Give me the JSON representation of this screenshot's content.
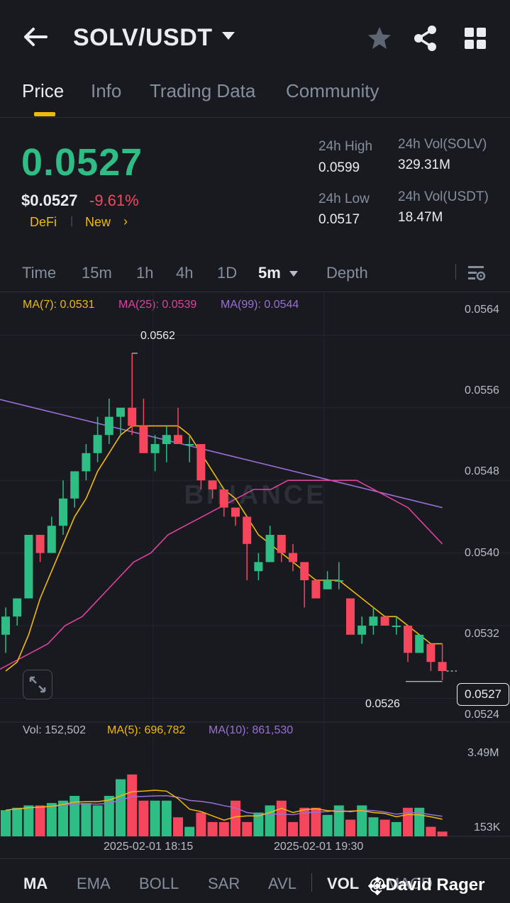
{
  "header": {
    "pair": "SOLV/USDT"
  },
  "tabs": [
    {
      "label": "Price",
      "active": true
    },
    {
      "label": "Info"
    },
    {
      "label": "Trading Data"
    },
    {
      "label": "Community"
    }
  ],
  "price": {
    "last": "0.0527",
    "usd": "$0.0527",
    "change": "-9.61%",
    "tags": [
      "DeFi",
      "|",
      "New"
    ],
    "tag_arrow": "›"
  },
  "stats": {
    "high_label": "24h High",
    "high_value": "0.0599",
    "low_label": "24h Low",
    "low_value": "0.0517",
    "vol_base_label": "24h Vol(SOLV)",
    "vol_base_value": "329.31M",
    "vol_quote_label": "24h Vol(USDT)",
    "vol_quote_value": "18.47M"
  },
  "timeframes": {
    "time": "Time",
    "m15": "15m",
    "h1": "1h",
    "h4": "4h",
    "d1": "1D",
    "m5": "5m",
    "depth": "Depth"
  },
  "ma_legend": {
    "ma7": "MA(7): 0.0531",
    "ma25": "MA(25): 0.0539",
    "ma99": "MA(99): 0.0544"
  },
  "price_axis": [
    "0.0564",
    "0.0556",
    "0.0548",
    "0.0540",
    "0.0532",
    "0.0524"
  ],
  "current_price_tag": "0.0527",
  "high_marker": "0.0562",
  "low_marker": "0.0526",
  "volume": {
    "vol_label": "Vol: 152,502",
    "ma5_label": "MA(5): 696,782",
    "ma10_label": "MA(10): 861,530",
    "axis_top": "3.49M",
    "axis_bottom": "153K"
  },
  "time_axis": [
    "2025-02-01 18:15",
    "2025-02-01 19:30"
  ],
  "indicators": {
    "ma": "MA",
    "ema": "EMA",
    "boll": "BOLL",
    "sar": "SAR",
    "avl": "AVL",
    "vol": "VOL",
    "macd": "MACD"
  },
  "credit": "@David Rager",
  "watermark": "BINANCE",
  "colors": {
    "up": "#2ebd85",
    "down": "#f6465d",
    "accent": "#f0b90b",
    "ma7": "#f0b90b",
    "ma25": "#e040a0",
    "ma99": "#9b6fd6"
  },
  "chart_data": {
    "type": "candlestick",
    "interval": "5m",
    "y_range": [
      0.0522,
      0.0567
    ],
    "candles": [
      [
        0.0531,
        0.0534,
        0.0529,
        0.0533
      ],
      [
        0.0533,
        0.0535,
        0.0532,
        0.0535
      ],
      [
        0.0535,
        0.0542,
        0.0535,
        0.0542
      ],
      [
        0.0542,
        0.0542,
        0.0539,
        0.054
      ],
      [
        0.054,
        0.0544,
        0.054,
        0.0543
      ],
      [
        0.0543,
        0.0548,
        0.0542,
        0.0546
      ],
      [
        0.0546,
        0.0549,
        0.0545,
        0.0549
      ],
      [
        0.0549,
        0.0552,
        0.0548,
        0.0551
      ],
      [
        0.0551,
        0.0555,
        0.055,
        0.0553
      ],
      [
        0.0553,
        0.0557,
        0.0552,
        0.0555
      ],
      [
        0.0555,
        0.0556,
        0.0553,
        0.0556
      ],
      [
        0.0556,
        0.0562,
        0.0553,
        0.0554
      ],
      [
        0.0554,
        0.0557,
        0.0551,
        0.0551
      ],
      [
        0.0551,
        0.0553,
        0.0549,
        0.0552
      ],
      [
        0.0552,
        0.0554,
        0.055,
        0.0553
      ],
      [
        0.0553,
        0.0556,
        0.0552,
        0.0552
      ],
      [
        0.0552,
        0.0553,
        0.055,
        0.0552
      ],
      [
        0.0552,
        0.0552,
        0.0547,
        0.0548
      ],
      [
        0.0548,
        0.0548,
        0.0546,
        0.0547
      ],
      [
        0.0547,
        0.0547,
        0.0544,
        0.0545
      ],
      [
        0.0545,
        0.0545,
        0.0543,
        0.0544
      ],
      [
        0.0544,
        0.0544,
        0.0537,
        0.0541
      ],
      [
        0.0538,
        0.054,
        0.0537,
        0.0539
      ],
      [
        0.0539,
        0.0543,
        0.0539,
        0.0542
      ],
      [
        0.0542,
        0.0542,
        0.0539,
        0.054
      ],
      [
        0.054,
        0.0541,
        0.0538,
        0.0539
      ],
      [
        0.0539,
        0.0539,
        0.0534,
        0.0537
      ],
      [
        0.0537,
        0.0537,
        0.0535,
        0.0535
      ],
      [
        0.0536,
        0.0538,
        0.0536,
        0.0537
      ],
      [
        0.0537,
        0.0539,
        0.0536,
        0.0537
      ],
      [
        0.0535,
        0.0535,
        0.0531,
        0.0531
      ],
      [
        0.0531,
        0.0533,
        0.053,
        0.0532
      ],
      [
        0.0532,
        0.0534,
        0.0531,
        0.0533
      ],
      [
        0.0533,
        0.0533,
        0.0532,
        0.0532
      ],
      [
        0.0532,
        0.0533,
        0.0531,
        0.0532
      ],
      [
        0.0532,
        0.0532,
        0.0528,
        0.0529
      ],
      [
        0.0529,
        0.0531,
        0.0529,
        0.0531
      ],
      [
        0.053,
        0.053,
        0.0527,
        0.0528
      ],
      [
        0.0528,
        0.053,
        0.0526,
        0.0527
      ]
    ],
    "ma7": [
      0.0527,
      0.0528,
      0.0531,
      0.0535,
      0.0538,
      0.0541,
      0.0544,
      0.0546,
      0.0549,
      0.0551,
      0.0553,
      0.0554,
      0.0554,
      0.0554,
      0.0554,
      0.0554,
      0.0553,
      0.0551,
      0.0549,
      0.0547,
      0.0546,
      0.0544,
      0.0542,
      0.0541,
      0.054,
      0.0539,
      0.0538,
      0.0537,
      0.0537,
      0.0537,
      0.0536,
      0.0535,
      0.0534,
      0.0533,
      0.0533,
      0.0532,
      0.0531,
      0.053,
      0.053
    ],
    "ma25": [
      0.0527,
      0.0528,
      0.0529,
      0.053,
      0.0532,
      0.0533,
      0.0535,
      0.0537,
      0.0539,
      0.054,
      0.0542,
      0.0543,
      0.0544,
      0.0545,
      0.0546,
      0.0547,
      0.0547,
      0.0548,
      0.0548,
      0.0548,
      0.0548,
      0.0548,
      0.0547,
      0.0546,
      0.0545,
      0.0543,
      0.0541
    ],
    "ma99": [
      0.0557,
      0.0556,
      0.0555,
      0.0554,
      0.0553,
      0.0552,
      0.0551,
      0.055,
      0.0549,
      0.0548,
      0.0547,
      0.0546,
      0.0545
    ],
    "volume": [
      1.1,
      1.2,
      1.3,
      1.3,
      1.4,
      1.5,
      1.7,
      1.4,
      1.3,
      1.7,
      2.4,
      2.6,
      1.5,
      1.5,
      1.5,
      0.8,
      0.4,
      1.0,
      0.6,
      0.6,
      1.5,
      0.6,
      1.0,
      1.3,
      1.5,
      0.6,
      1.2,
      1.2,
      0.9,
      1.3,
      0.7,
      1.3,
      0.8,
      0.7,
      0.6,
      1.2,
      1.2,
      0.4,
      0.2
    ],
    "y_labels": [
      "0.0564",
      "0.0556",
      "0.0548",
      "0.0540",
      "0.0532",
      "0.0524"
    ],
    "x_labels": [
      "2025-02-01 18:15",
      "2025-02-01 19:30"
    ]
  }
}
